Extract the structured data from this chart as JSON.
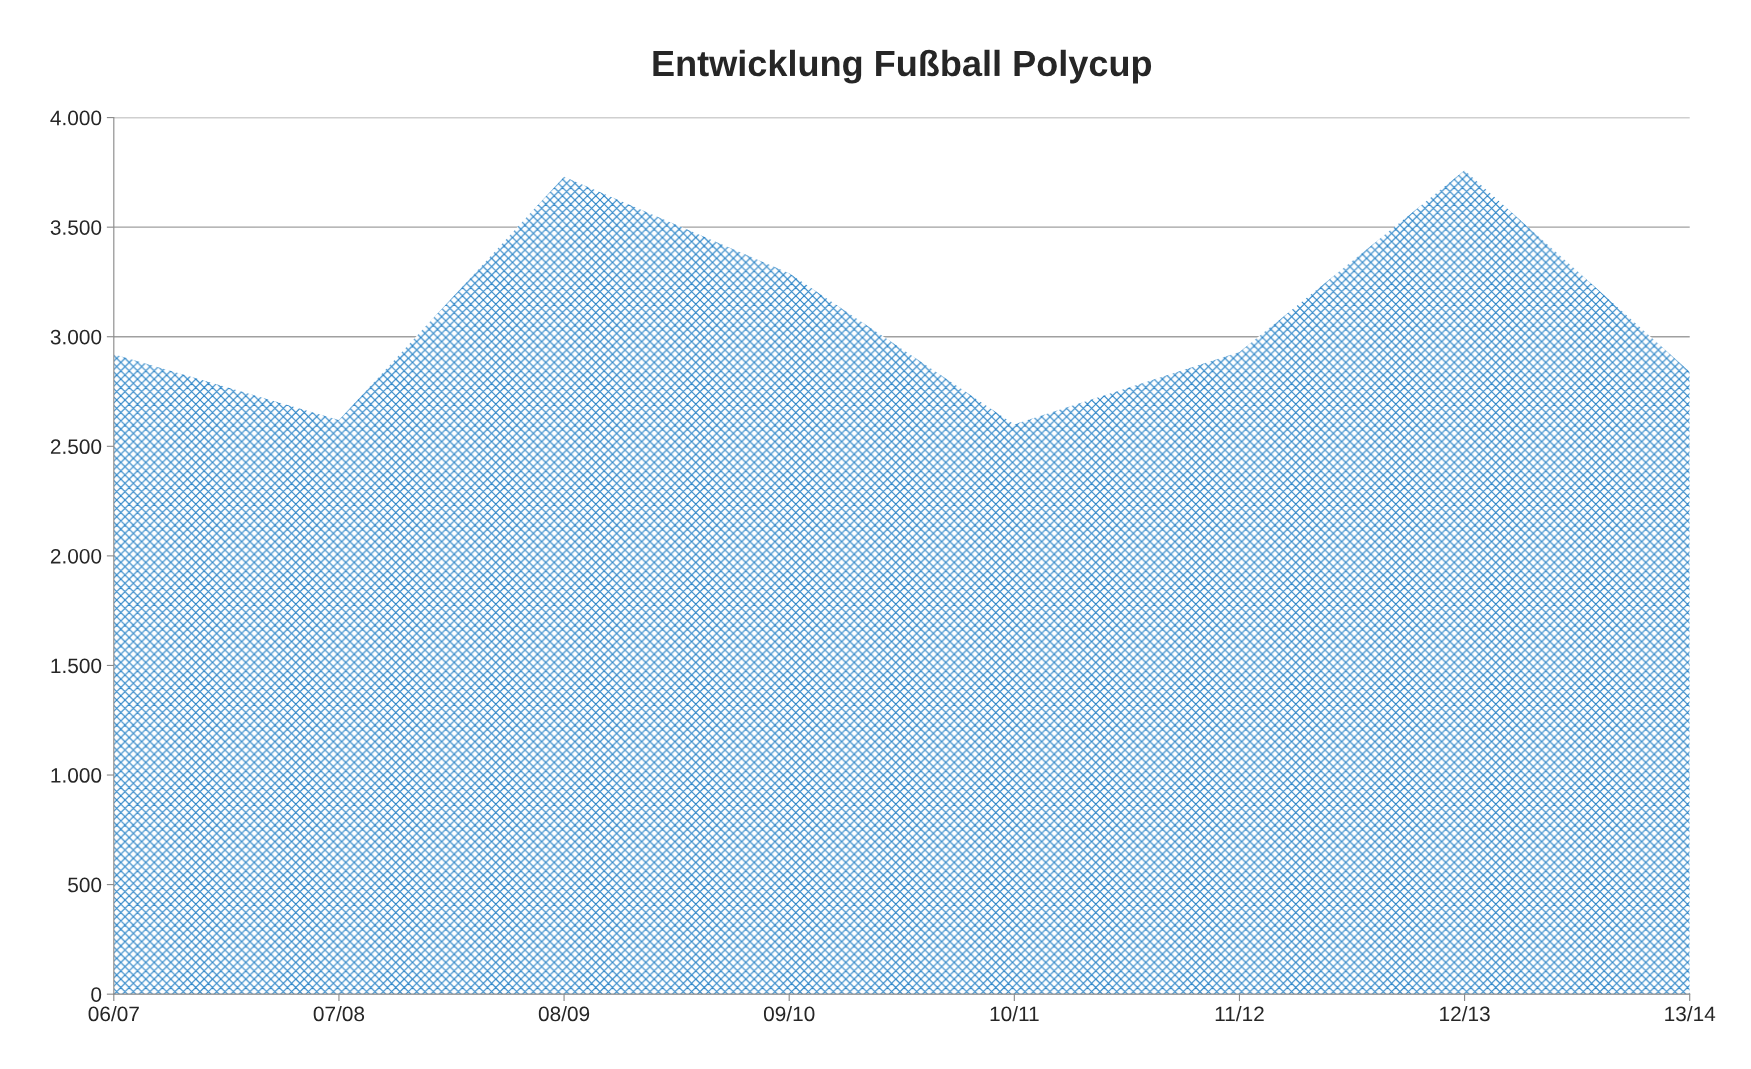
{
  "chart_data": {
    "type": "area",
    "title": "Entwicklung Fußball Polycup",
    "categories": [
      "06/07",
      "07/08",
      "08/09",
      "09/10",
      "10/11",
      "11/12",
      "12/13",
      "13/14"
    ],
    "series": [
      {
        "color": "#2e86c8",
        "values": [
          2920,
          2620,
          3730,
          3290,
          2600,
          2930,
          3760,
          2840
        ]
      }
    ],
    "ylim": [
      0,
      4000
    ],
    "yticks": [
      0,
      500,
      {
        "value": 1000,
        "label": "1.000"
      },
      {
        "value": 1500,
        "label": "1.500"
      },
      {
        "value": 2000,
        "label": "2.000"
      },
      {
        "value": 2500,
        "label": "2.500"
      },
      {
        "value": 3000,
        "label": "3.000"
      },
      {
        "value": 3500,
        "label": "3.500"
      },
      {
        "value": 4000,
        "label": "4.000"
      }
    ],
    "grid": "y"
  }
}
